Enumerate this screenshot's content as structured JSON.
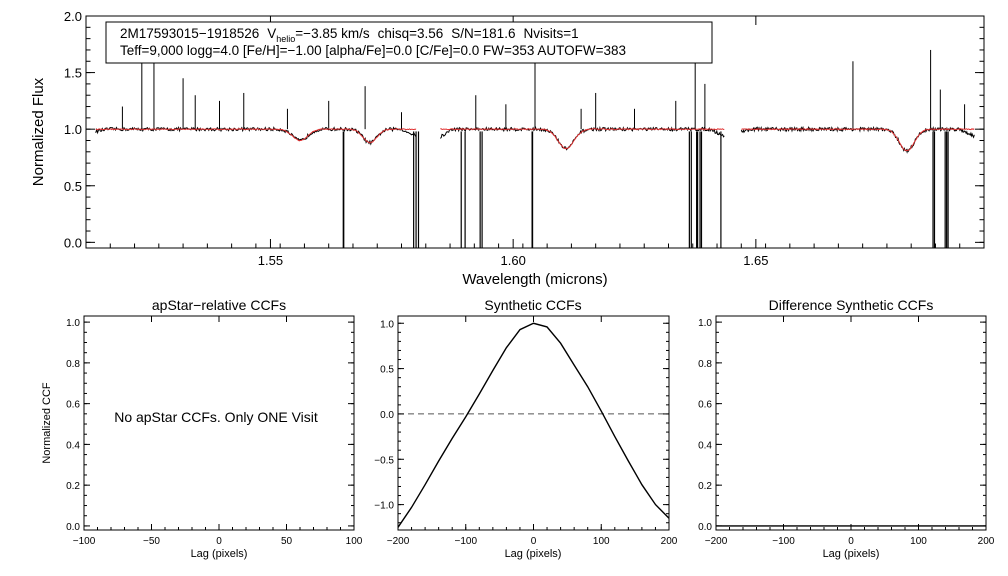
{
  "chart_data": [
    {
      "type": "line",
      "id": "spectrum",
      "title_line1": {
        "star": "2M17593015−1918526",
        "vhelio_prefix": "V",
        "vhelio_sub": "helio",
        "vhelio_value": "=−3.85 km/s",
        "chisq": "chisq=3.56",
        "sn": "S/N=181.6",
        "nvisits": "Nvisits=1"
      },
      "title_line2": "Teff=9,000 logg=4.0 [Fe/H]=−1.00 [alpha/Fe]=0.0 [C/Fe]=0.0 FW=353 AUTOFW=383",
      "xlabel": "Wavelength (microns)",
      "ylabel": "Normalized Flux",
      "xlim": [
        1.512,
        1.697
      ],
      "ylim": [
        -0.05,
        2.0
      ],
      "xticks": [
        1.55,
        1.6,
        1.65
      ],
      "xtick_labels": [
        "1.55",
        "1.60",
        "1.65"
      ],
      "yticks": [
        0.0,
        0.5,
        1.0,
        1.5,
        2.0
      ],
      "ytick_labels": [
        "0.0",
        "0.5",
        "1.0",
        "1.5",
        "2.0"
      ],
      "chips": [
        [
          1.514,
          1.58
        ],
        [
          1.585,
          1.6435
        ],
        [
          1.647,
          1.695
        ]
      ],
      "series": [
        {
          "name": "observed",
          "color": "#000000"
        },
        {
          "name": "model",
          "color": "#e03030"
        }
      ],
      "absorption_lines": [
        {
          "center": 1.5561,
          "depth": 0.1,
          "width": 0.0022
        },
        {
          "center": 1.5705,
          "depth": 0.12,
          "width": 0.002
        },
        {
          "center": 1.6109,
          "depth": 0.17,
          "width": 0.0023
        },
        {
          "center": 1.6811,
          "depth": 0.19,
          "width": 0.0022
        }
      ],
      "emission_spikes": [
        {
          "x": 1.5195,
          "y": 1.2
        },
        {
          "x": 1.5235,
          "y": 1.65
        },
        {
          "x": 1.526,
          "y": 1.95
        },
        {
          "x": 1.532,
          "y": 1.45
        },
        {
          "x": 1.5345,
          "y": 1.3
        },
        {
          "x": 1.5395,
          "y": 1.25
        },
        {
          "x": 1.5445,
          "y": 1.32
        },
        {
          "x": 1.5535,
          "y": 1.18
        },
        {
          "x": 1.562,
          "y": 1.25
        },
        {
          "x": 1.5695,
          "y": 1.38
        },
        {
          "x": 1.577,
          "y": 1.15
        },
        {
          "x": 1.5923,
          "y": 1.3
        },
        {
          "x": 1.5985,
          "y": 1.22
        },
        {
          "x": 1.6045,
          "y": 1.95
        },
        {
          "x": 1.614,
          "y": 1.18
        },
        {
          "x": 1.617,
          "y": 1.32
        },
        {
          "x": 1.625,
          "y": 1.18
        },
        {
          "x": 1.6335,
          "y": 1.25
        },
        {
          "x": 1.6375,
          "y": 1.8
        },
        {
          "x": 1.6395,
          "y": 1.4
        },
        {
          "x": 1.67,
          "y": 1.6
        },
        {
          "x": 1.686,
          "y": 1.7
        },
        {
          "x": 1.688,
          "y": 1.35
        },
        {
          "x": 1.693,
          "y": 1.22
        }
      ],
      "dropouts": [
        1.565,
        1.5651,
        1.5795,
        1.58,
        1.5805,
        1.5893,
        1.5901,
        1.5932,
        1.5936,
        1.6039,
        1.604,
        1.6363,
        1.6367,
        1.6378,
        1.638,
        1.6385,
        1.6388,
        1.6428,
        1.6865,
        1.6868,
        1.689,
        1.6893,
        1.6896
      ]
    },
    {
      "type": "line",
      "id": "apstar",
      "title": "apStar−relative CCFs",
      "xlabel": "Lag (pixels)",
      "ylabel": "Normalized CCF",
      "xlim": [
        -100,
        100
      ],
      "ylim": [
        -0.02,
        1.03
      ],
      "xticks": [
        -100,
        -50,
        0,
        50,
        100
      ],
      "xtick_labels": [
        "−100",
        "−50",
        "0",
        "50",
        "100"
      ],
      "yticks": [
        0.0,
        0.2,
        0.4,
        0.6,
        0.8,
        1.0
      ],
      "ytick_labels": [
        "0.0",
        "0.2",
        "0.4",
        "0.6",
        "0.8",
        "1.0"
      ],
      "annotation": "No apStar CCFs.  Only ONE Visit",
      "series": []
    },
    {
      "type": "line",
      "id": "synthetic",
      "title": "Synthetic CCFs",
      "xlabel": "Lag (pixels)",
      "ylabel": "",
      "xlim": [
        -200,
        200
      ],
      "ylim": [
        -1.28,
        1.08
      ],
      "xticks": [
        -200,
        -100,
        0,
        100,
        200
      ],
      "xtick_labels": [
        "−200",
        "−100",
        "0",
        "100",
        "200"
      ],
      "yticks": [
        -1.0,
        -0.5,
        0.0,
        0.5,
        1.0
      ],
      "ytick_labels": [
        "−1.0",
        "−0.5",
        "0.0",
        "0.5",
        "1.0"
      ],
      "reference_line": {
        "y": 0.0,
        "style": "dashed"
      },
      "series": [
        {
          "name": "synthetic CCF",
          "x": [
            -200,
            -180,
            -160,
            -140,
            -120,
            -100,
            -80,
            -60,
            -40,
            -20,
            0,
            20,
            40,
            60,
            80,
            100,
            120,
            140,
            160,
            180,
            200
          ],
          "y": [
            -1.25,
            -1.03,
            -0.78,
            -0.52,
            -0.27,
            -0.03,
            0.22,
            0.48,
            0.73,
            0.93,
            1.0,
            0.96,
            0.78,
            0.54,
            0.3,
            0.03,
            -0.25,
            -0.52,
            -0.78,
            -1.0,
            -1.15
          ]
        }
      ]
    },
    {
      "type": "line",
      "id": "difference",
      "title": "Difference Synthetic CCFs",
      "xlabel": "Lag (pixels)",
      "ylabel": "",
      "xlim": [
        -200,
        200
      ],
      "ylim": [
        -0.02,
        1.03
      ],
      "xticks": [
        -200,
        -100,
        0,
        100,
        200
      ],
      "xtick_labels": [
        "−200",
        "−100",
        "0",
        "100",
        "200"
      ],
      "yticks": [
        0.0,
        0.2,
        0.4,
        0.6,
        0.8,
        1.0
      ],
      "ytick_labels": [
        "0.0",
        "0.2",
        "0.4",
        "0.6",
        "0.8",
        "1.0"
      ],
      "series": [
        {
          "name": "difference",
          "x": [
            -200,
            200
          ],
          "y": [
            0.0,
            0.0
          ]
        }
      ]
    }
  ]
}
